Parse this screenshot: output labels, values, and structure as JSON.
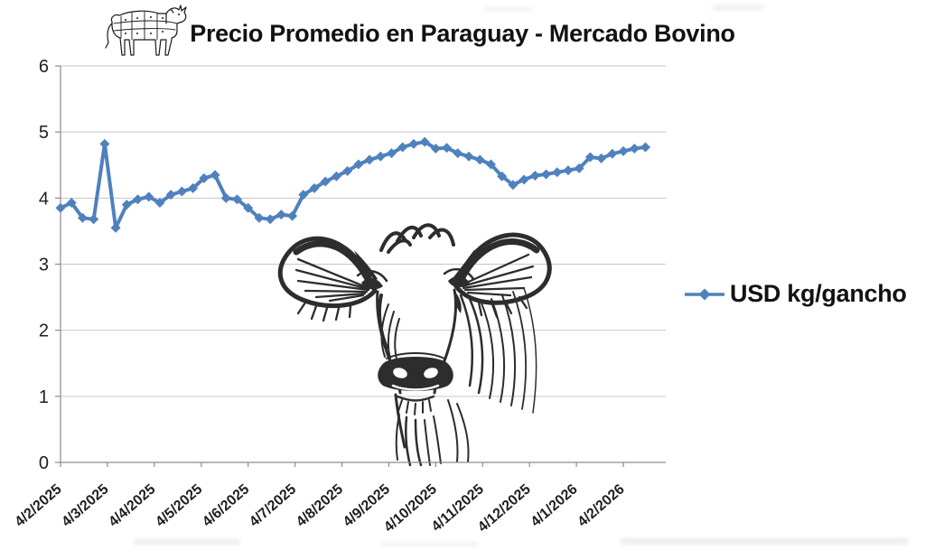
{
  "title": "Precio Promedio en Paraguay - Mercado Bovino",
  "legend": {
    "label": "USD kg/gancho",
    "position": "right"
  },
  "icons": {
    "title_icon": "butcher-cow-cuts-diagram",
    "watermark_icon": "cow-head-line-art",
    "legend_marker": "blue-line-with-diamond-marker"
  },
  "colors": {
    "series": "#4F81BD",
    "grid": "#c6c6c6",
    "axis": "#8c8c8c",
    "text": "#1f1f1f"
  },
  "chart_data": {
    "type": "line",
    "title": "Precio Promedio en Paraguay - Mercado Bovino",
    "xlabel": "",
    "ylabel": "",
    "ylim": [
      0,
      6
    ],
    "y_ticks": [
      0,
      1,
      2,
      3,
      4,
      5,
      6
    ],
    "x_tick_labels": [
      "4/2/2025",
      "4/3/2025",
      "4/4/2025",
      "4/5/2025",
      "4/6/2025",
      "4/7/2025",
      "4/8/2025",
      "4/9/2025",
      "4/10/2025",
      "4/11/2025",
      "4/12/2025",
      "4/1/2026",
      "4/2/2026"
    ],
    "x_cadence": "weekly data points; monthly tick labels (d/m/yyyy)",
    "grid": "horizontal",
    "legend_position": "right",
    "series": [
      {
        "name": "USD kg/gancho",
        "color": "#4F81BD",
        "marker": "diamond",
        "values": [
          3.85,
          3.93,
          3.7,
          3.68,
          4.82,
          3.55,
          3.9,
          3.98,
          4.02,
          3.93,
          4.05,
          4.1,
          4.15,
          4.3,
          4.35,
          4.0,
          3.98,
          3.85,
          3.7,
          3.68,
          3.75,
          3.73,
          4.05,
          4.15,
          4.25,
          4.33,
          4.41,
          4.51,
          4.58,
          4.63,
          4.68,
          4.77,
          4.82,
          4.85,
          4.75,
          4.76,
          4.68,
          4.63,
          4.58,
          4.51,
          4.33,
          4.2,
          4.28,
          4.34,
          4.36,
          4.39,
          4.42,
          4.45,
          4.62,
          4.6,
          4.67,
          4.71,
          4.75,
          4.77
        ]
      }
    ]
  }
}
